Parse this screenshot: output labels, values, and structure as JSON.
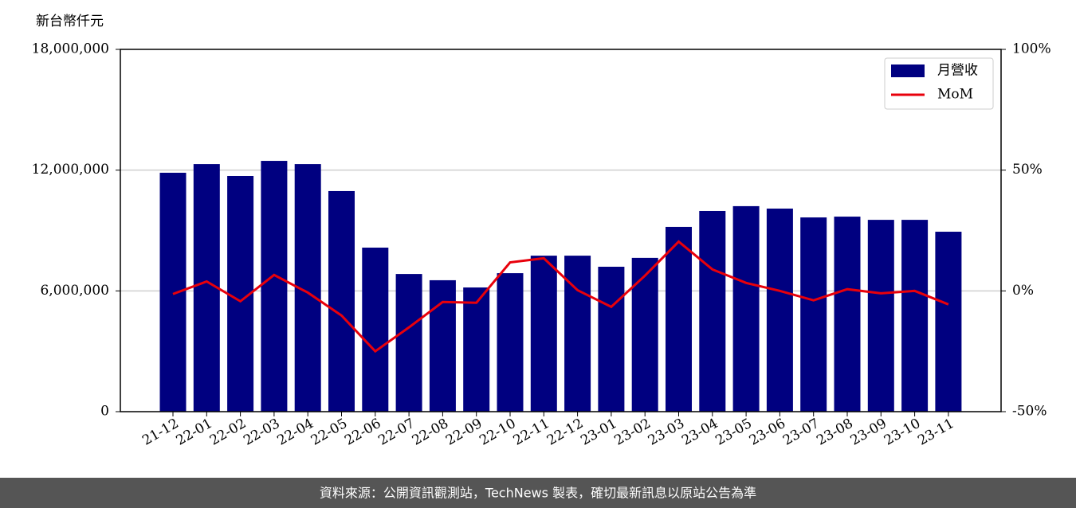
{
  "chart_data": {
    "type": "bar-line",
    "y_label": "新台幣仟元",
    "categories": [
      "21-12",
      "22-01",
      "22-02",
      "22-03",
      "22-04",
      "22-05",
      "22-06",
      "22-07",
      "22-08",
      "22-09",
      "22-10",
      "22-11",
      "22-12",
      "23-01",
      "23-02",
      "23-03",
      "23-04",
      "23-05",
      "23-06",
      "23-07",
      "23-08",
      "23-09",
      "23-10",
      "23-11"
    ],
    "series": [
      {
        "name": "月營收",
        "type": "bar",
        "color": "#000080",
        "values": [
          11870000,
          12300000,
          11710000,
          12460000,
          12300000,
          10960000,
          8150000,
          6840000,
          6530000,
          6170000,
          6880000,
          7750000,
          7750000,
          7200000,
          7640000,
          9180000,
          9970000,
          10210000,
          10090000,
          9650000,
          9690000,
          9530000,
          9530000,
          8940000
        ]
      },
      {
        "name": "MoM",
        "type": "line",
        "axis": "y2",
        "color": "#e8000b",
        "values": [
          -1.3,
          3.9,
          -4.3,
          6.6,
          -0.7,
          -10.2,
          -25,
          -15.1,
          -4.6,
          -4.9,
          11.8,
          13.5,
          0.3,
          -6.6,
          6.3,
          20.4,
          8.9,
          3.3,
          0,
          -3.9,
          0.7,
          -1.0,
          0,
          -5.6
        ]
      }
    ],
    "ylim": [
      0,
      18000000
    ],
    "yticks": [
      0,
      {
        "value": 6000000,
        "label": "6,000,000"
      },
      {
        "value": 12000000,
        "label": "12,000,000"
      },
      {
        "value": 18000000,
        "label": "18,000,000"
      }
    ],
    "y2lim": [
      -50,
      100
    ],
    "y2ticks": [
      {
        "value": -50,
        "label": "-50%"
      },
      {
        "value": 0,
        "label": "0%"
      },
      {
        "value": 50,
        "label": "50%"
      },
      {
        "value": 100,
        "label": "100%"
      }
    ],
    "grid": true,
    "legend": "upper right"
  },
  "footer": "資料來源：公開資訊觀測站，TechNews 製表，確切最新訊息以原站公告為準"
}
